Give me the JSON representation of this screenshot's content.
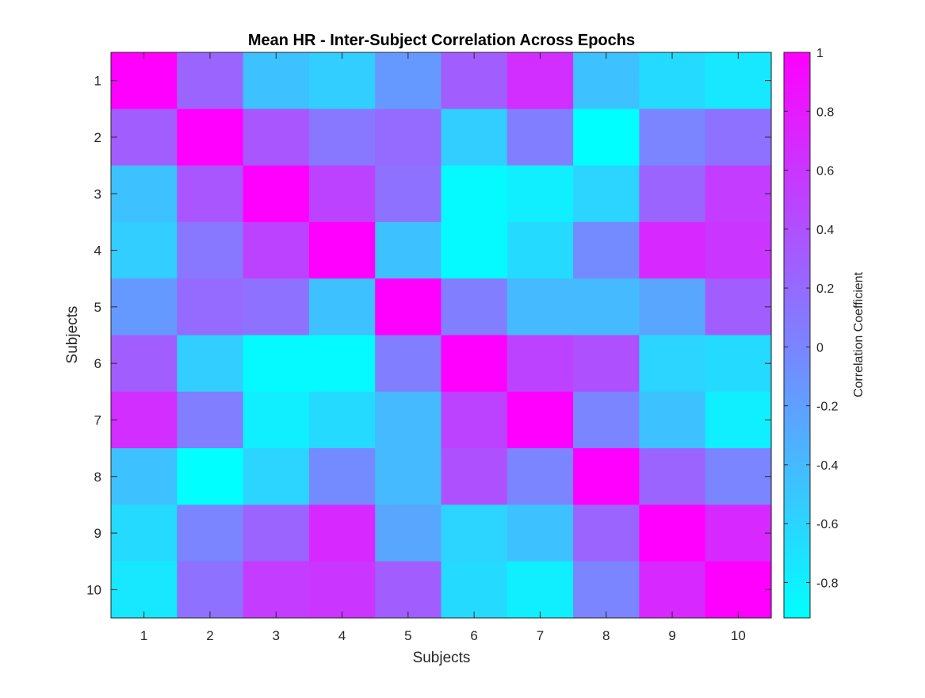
{
  "chart_data": {
    "type": "heatmap",
    "title": "Mean HR - Inter-Subject Correlation Across Epochs",
    "xlabel": "Subjects",
    "ylabel": "Subjects",
    "x_categories": [
      "1",
      "2",
      "3",
      "4",
      "5",
      "6",
      "7",
      "8",
      "9",
      "10"
    ],
    "y_categories": [
      "1",
      "2",
      "3",
      "4",
      "5",
      "6",
      "7",
      "8",
      "9",
      "10"
    ],
    "values": [
      [
        1.0,
        0.25,
        -0.45,
        -0.55,
        -0.15,
        0.3,
        0.65,
        -0.45,
        -0.65,
        -0.75
      ],
      [
        0.3,
        1.0,
        0.35,
        0.1,
        0.2,
        -0.55,
        0.05,
        -0.92,
        0.0,
        0.15
      ],
      [
        -0.45,
        0.35,
        1.0,
        0.5,
        0.15,
        -0.88,
        -0.8,
        -0.6,
        0.25,
        0.55
      ],
      [
        -0.55,
        0.1,
        0.5,
        1.0,
        -0.45,
        -0.88,
        -0.65,
        -0.05,
        0.7,
        0.6
      ],
      [
        -0.15,
        0.2,
        0.15,
        -0.45,
        1.0,
        0.05,
        -0.4,
        -0.4,
        -0.25,
        0.3
      ],
      [
        0.3,
        -0.55,
        -0.88,
        -0.88,
        0.05,
        1.0,
        0.5,
        0.4,
        -0.6,
        -0.65
      ],
      [
        0.65,
        0.05,
        -0.8,
        -0.65,
        -0.4,
        0.5,
        1.0,
        0.0,
        -0.45,
        -0.8
      ],
      [
        -0.45,
        -0.92,
        -0.6,
        -0.05,
        -0.4,
        0.4,
        0.0,
        1.0,
        0.25,
        0.0
      ],
      [
        -0.65,
        0.0,
        0.25,
        0.7,
        -0.25,
        -0.6,
        -0.45,
        0.25,
        1.0,
        0.7
      ],
      [
        -0.75,
        0.15,
        0.55,
        0.6,
        0.3,
        -0.65,
        -0.8,
        0.0,
        0.7,
        1.0
      ]
    ],
    "colormap": "cool",
    "color_range": [
      -0.92,
      1.0
    ],
    "colorbar": {
      "label": "Correlation Coefficient",
      "ticks": [
        -0.8,
        -0.6,
        -0.4,
        -0.2,
        0,
        0.2,
        0.4,
        0.6,
        0.8,
        1
      ],
      "tick_labels": [
        "-0.8",
        "-0.6",
        "-0.4",
        "-0.2",
        "0",
        "0.2",
        "0.4",
        "0.6",
        "0.8",
        "1"
      ]
    },
    "colors": {
      "low": "#00ffff",
      "high": "#ff00ff"
    }
  }
}
